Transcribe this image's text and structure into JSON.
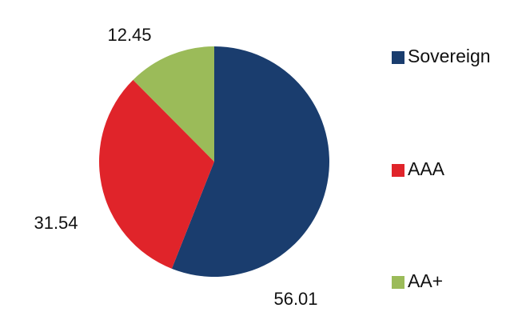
{
  "chart_data": {
    "type": "pie",
    "categories": [
      "Sovereign",
      "AAA",
      "AA+"
    ],
    "values": [
      56.01,
      31.54,
      12.45
    ],
    "colors": [
      "#1a3d6e",
      "#e0242a",
      "#9bbb59"
    ],
    "legend": "right"
  }
}
